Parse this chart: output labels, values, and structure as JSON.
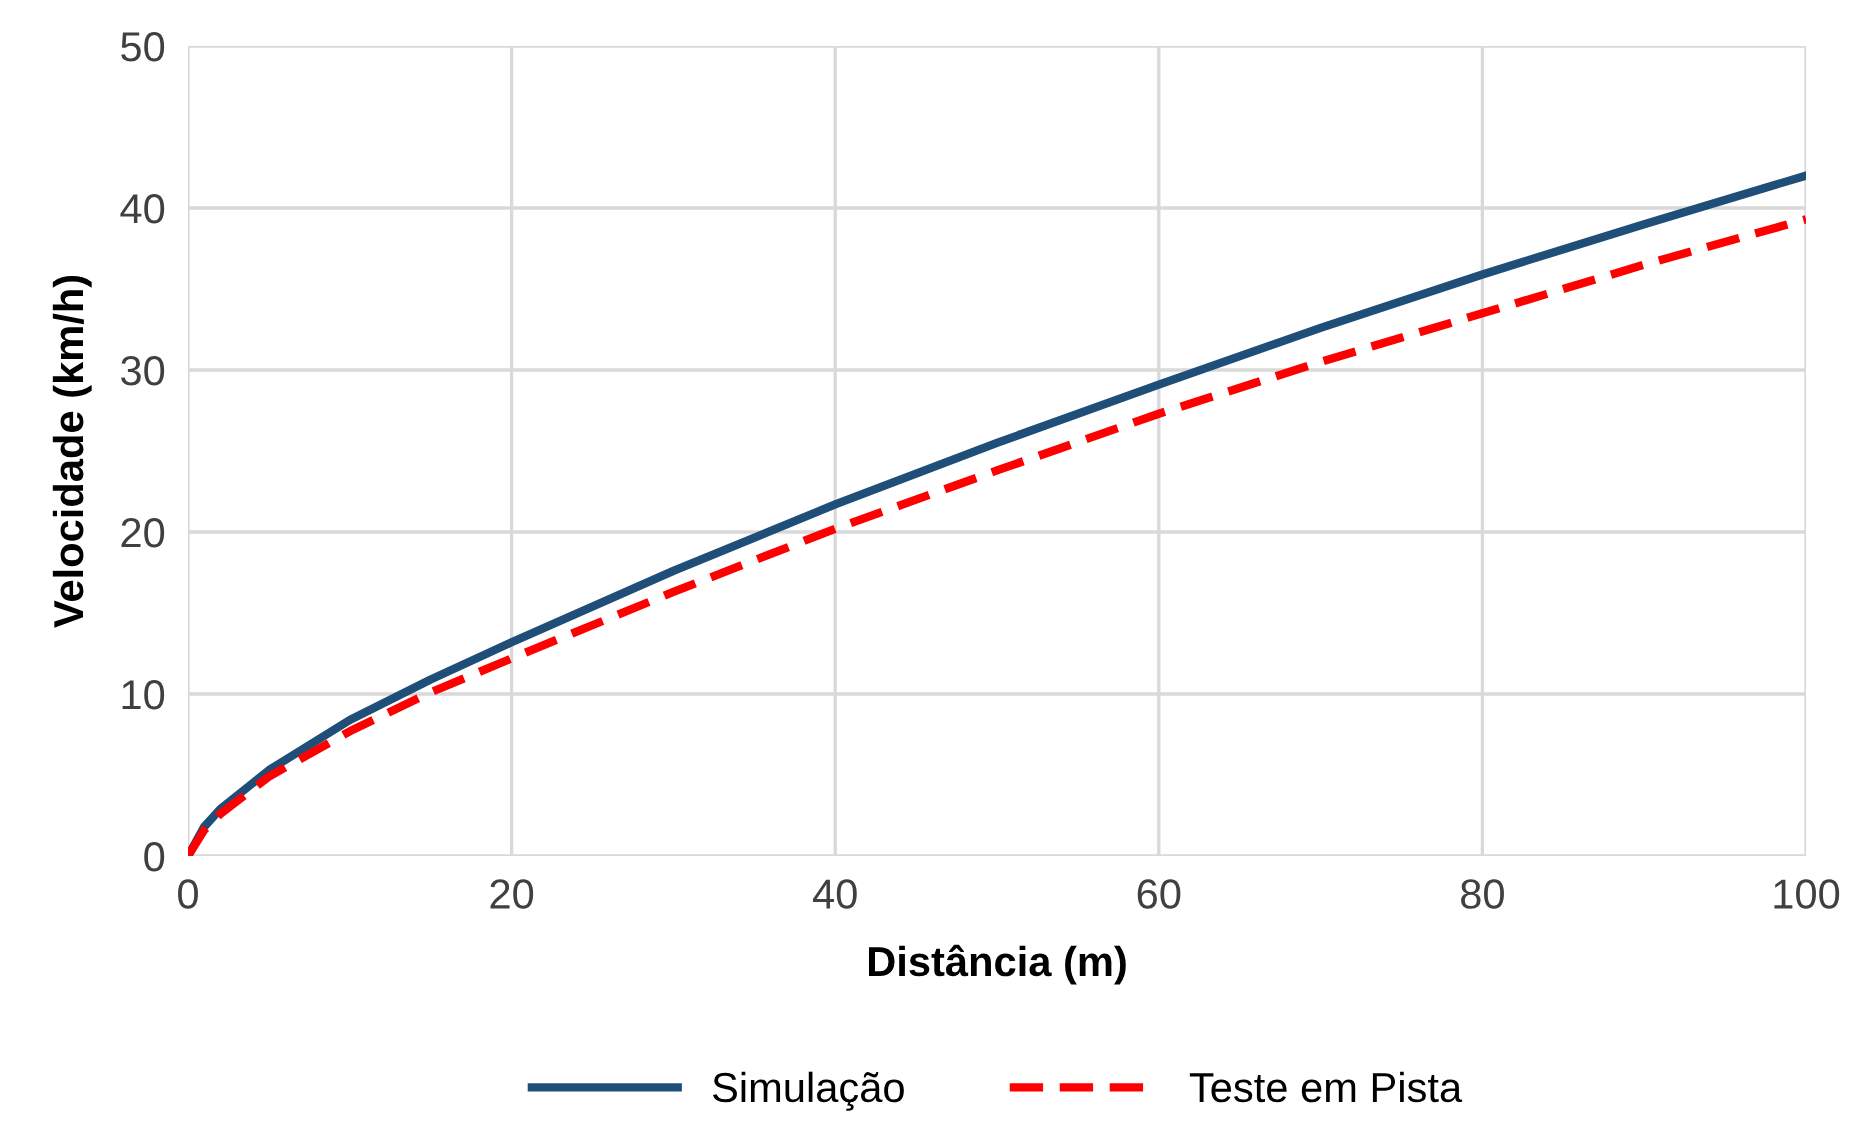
{
  "chart_data": {
    "type": "line",
    "xlabel": "Distância (m)",
    "ylabel": "Velocidade (km/h)",
    "x": [
      0,
      1,
      2,
      5,
      10,
      15,
      20,
      30,
      40,
      50,
      60,
      70,
      80,
      90,
      100
    ],
    "series": [
      {
        "name": "Simulação",
        "color": "#1f4e79",
        "line_style": "solid",
        "values": [
          0,
          1.8,
          2.9,
          5.3,
          8.4,
          10.9,
          13.2,
          17.6,
          21.7,
          25.5,
          29.1,
          32.6,
          35.9,
          39.0,
          42.0
        ]
      },
      {
        "name": "Teste em Pista",
        "color": "#ff0000",
        "line_style": "dashed",
        "values": [
          0,
          1.6,
          2.6,
          4.9,
          7.7,
          10.1,
          12.2,
          16.3,
          20.2,
          23.8,
          27.3,
          30.5,
          33.5,
          36.5,
          39.3
        ]
      }
    ],
    "xlim": [
      0,
      100
    ],
    "ylim": [
      0,
      50
    ],
    "xticks": [
      0,
      20,
      40,
      60,
      80,
      100
    ],
    "yticks": [
      0,
      10,
      20,
      30,
      40,
      50
    ],
    "grid": true,
    "legend": "bottom",
    "marker": "none"
  }
}
